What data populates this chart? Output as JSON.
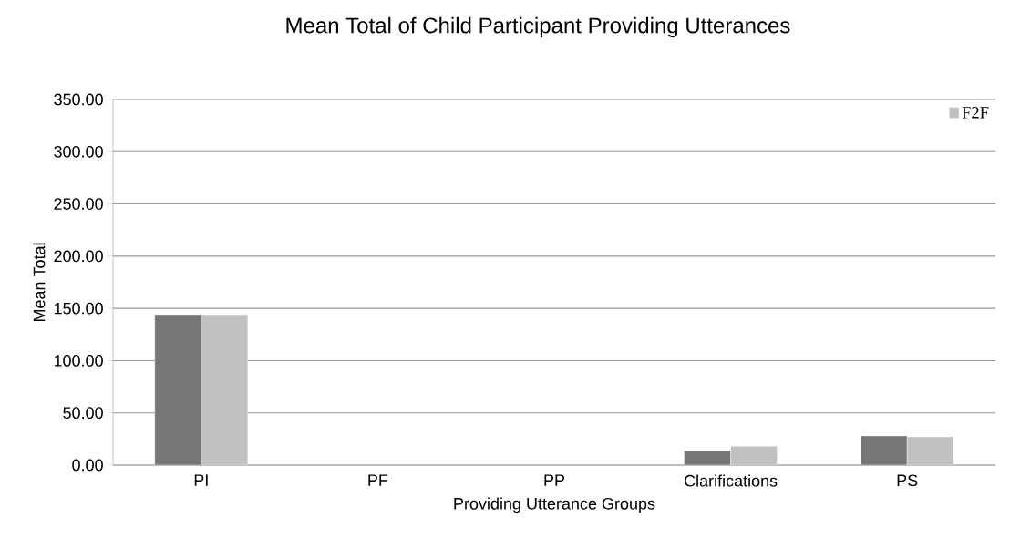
{
  "chart_data": {
    "type": "bar",
    "title": "Mean Total of Child Participant Providing Utterances",
    "xlabel": "Providing Utterance Groups",
    "ylabel": "Mean Total",
    "categories": [
      "PI",
      "PF",
      "PP",
      "Clarifications",
      "PS"
    ],
    "series": [
      {
        "color": "#767676",
        "values": [
          144,
          null,
          null,
          14,
          28
        ]
      },
      {
        "name": "F2F",
        "color": "#c0c0c0",
        "values": [
          144,
          null,
          null,
          18,
          27
        ]
      }
    ],
    "ylim": [
      0,
      350
    ],
    "yticks": [
      {
        "value": 0,
        "label": "0.00"
      },
      {
        "value": 50,
        "label": "50.00"
      },
      {
        "value": 100,
        "label": "100.00"
      },
      {
        "value": 150,
        "label": "150.00"
      },
      {
        "value": 200,
        "label": "200.00"
      },
      {
        "value": 250,
        "label": "250.00"
      },
      {
        "value": 300,
        "label": "300.00"
      },
      {
        "value": 350,
        "label": "350.00"
      }
    ],
    "grid": "y",
    "legend": "top right"
  }
}
